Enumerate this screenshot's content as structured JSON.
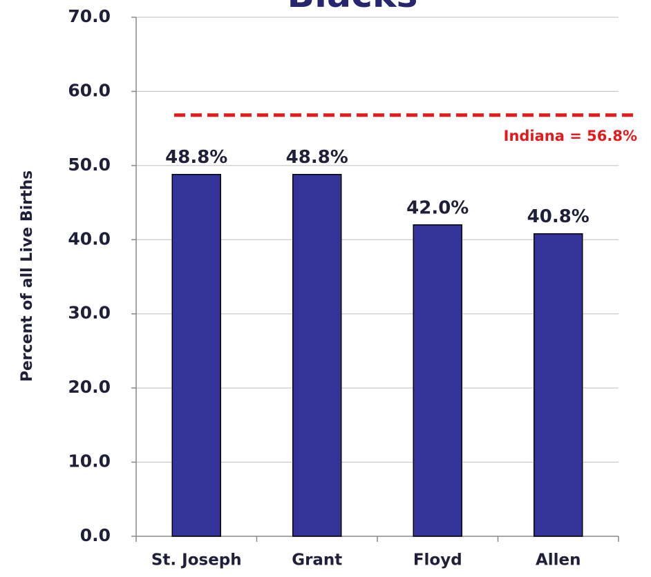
{
  "chart_data": {
    "type": "bar",
    "title": "Blacks",
    "y_label": "Percent of all Live Births",
    "categories": [
      "St. Joseph",
      "Grant",
      "Floyd",
      "Allen"
    ],
    "values": [
      48.8,
      48.8,
      42.0,
      40.8
    ],
    "value_labels": [
      "48.8%",
      "48.8%",
      "42.0%",
      "40.8%"
    ],
    "color": "#333399",
    "ylim": [
      0,
      70
    ],
    "yticks": [
      {
        "value": 0,
        "label": "0.0"
      },
      {
        "value": 10,
        "label": "10.0"
      },
      {
        "value": 20,
        "label": "20.0"
      },
      {
        "value": 30,
        "label": "30.0"
      },
      {
        "value": 40,
        "label": "40.0"
      },
      {
        "value": 50,
        "label": "50.0"
      },
      {
        "value": 60,
        "label": "60.0"
      },
      {
        "value": 70,
        "label": "70.0"
      }
    ],
    "grid": true,
    "reference_line": {
      "value": 56.8,
      "label": "Indiana = 56.8%",
      "color": "#e31a1c"
    }
  }
}
